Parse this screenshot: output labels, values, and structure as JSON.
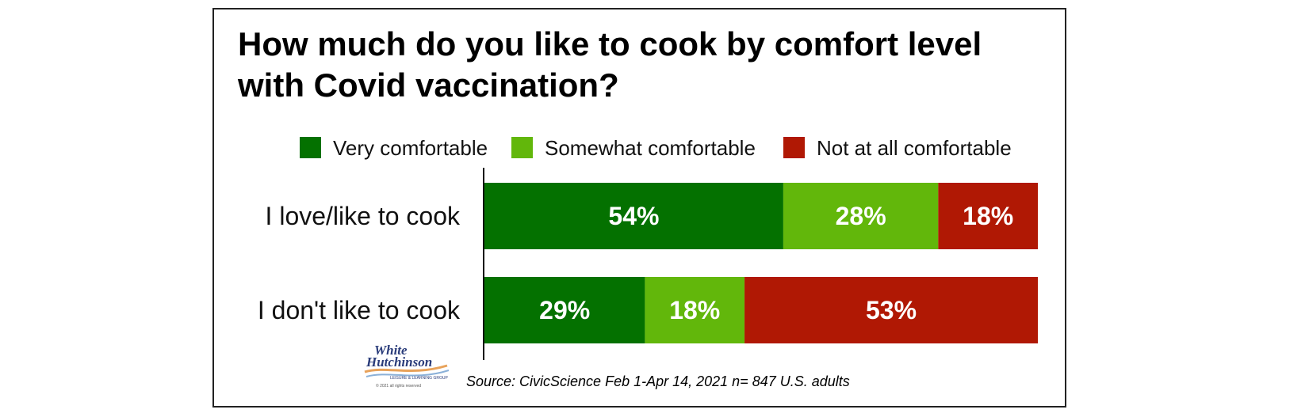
{
  "chart_data": {
    "type": "bar",
    "orientation": "horizontal",
    "stacked": true,
    "title": "How much do you like to cook by comfort level with Covid vaccination?",
    "categories": [
      "I love/like to cook",
      "I don't like to cook"
    ],
    "series": [
      {
        "name": "Very comfortable",
        "color": "#047100",
        "values": [
          54,
          29
        ],
        "labels": [
          "54%",
          "29%"
        ]
      },
      {
        "name": "Somewhat comfortable",
        "color": "#62b70b",
        "values": [
          28,
          18
        ],
        "labels": [
          "28%",
          "18%"
        ]
      },
      {
        "name": "Not at all comfortable",
        "color": "#b01804",
        "values": [
          18,
          53
        ],
        "labels": [
          "18%",
          "53%"
        ]
      }
    ],
    "xlim": [
      0,
      100
    ],
    "legend": "top",
    "grid": false,
    "source": "Source: CivicScience Feb 1-Apr 14, 2021 n= 847 U.S. adults"
  },
  "logo": {
    "line1": "White",
    "line2": "Hutchinson",
    "tagline": "LEISURE & LEARNING GROUP",
    "copyright": "© 2021 all rights reserved"
  }
}
